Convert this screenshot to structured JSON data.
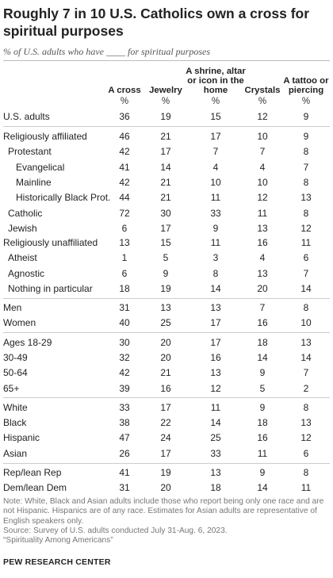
{
  "title": "Roughly 7 in 10 U.S. Catholics own a cross for spiritual purposes",
  "subtitle": "% of U.S. adults who have ____ for spiritual purposes",
  "columns": [
    "A cross",
    "Jewelry",
    "A shrine, altar or icon in the home",
    "Crystals",
    "A tattoo or piercing"
  ],
  "unit": "%",
  "rows": [
    {
      "label": "U.S. adults",
      "values": [
        "36",
        "19",
        "15",
        "12",
        "9"
      ]
    },
    {
      "label": "Religiously affiliated",
      "values": [
        "46",
        "21",
        "17",
        "10",
        "9"
      ]
    },
    {
      "label": "Protestant",
      "values": [
        "42",
        "17",
        "7",
        "7",
        "8"
      ]
    },
    {
      "label": "Evangelical",
      "values": [
        "41",
        "14",
        "4",
        "4",
        "7"
      ]
    },
    {
      "label": "Mainline",
      "values": [
        "42",
        "21",
        "10",
        "10",
        "8"
      ]
    },
    {
      "label": "Historically Black Prot.",
      "values": [
        "44",
        "21",
        "11",
        "12",
        "13"
      ]
    },
    {
      "label": "Catholic",
      "values": [
        "72",
        "30",
        "33",
        "11",
        "8"
      ]
    },
    {
      "label": "Jewish",
      "values": [
        "6",
        "17",
        "9",
        "13",
        "12"
      ]
    },
    {
      "label": "Religiously unaffiliated",
      "values": [
        "13",
        "15",
        "11",
        "16",
        "11"
      ]
    },
    {
      "label": "Atheist",
      "values": [
        "1",
        "5",
        "3",
        "4",
        "6"
      ]
    },
    {
      "label": "Agnostic",
      "values": [
        "6",
        "9",
        "8",
        "13",
        "7"
      ]
    },
    {
      "label": "Nothing in particular",
      "values": [
        "18",
        "19",
        "14",
        "20",
        "14"
      ]
    },
    {
      "label": "Men",
      "values": [
        "31",
        "13",
        "13",
        "7",
        "8"
      ]
    },
    {
      "label": "Women",
      "values": [
        "40",
        "25",
        "17",
        "16",
        "10"
      ]
    },
    {
      "label": "Ages 18-29",
      "values": [
        "30",
        "20",
        "17",
        "18",
        "13"
      ]
    },
    {
      "label": "30-49",
      "values": [
        "32",
        "20",
        "16",
        "14",
        "14"
      ]
    },
    {
      "label": "50-64",
      "values": [
        "42",
        "21",
        "13",
        "9",
        "7"
      ]
    },
    {
      "label": "65+",
      "values": [
        "39",
        "16",
        "12",
        "5",
        "2"
      ]
    },
    {
      "label": "White",
      "values": [
        "33",
        "17",
        "11",
        "9",
        "8"
      ]
    },
    {
      "label": "Black",
      "values": [
        "38",
        "22",
        "14",
        "18",
        "13"
      ]
    },
    {
      "label": "Hispanic",
      "values": [
        "47",
        "24",
        "25",
        "16",
        "12"
      ]
    },
    {
      "label": "Asian",
      "values": [
        "26",
        "17",
        "33",
        "11",
        "6"
      ]
    },
    {
      "label": "Rep/lean Rep",
      "values": [
        "41",
        "19",
        "13",
        "9",
        "8"
      ]
    },
    {
      "label": "Dem/lean Dem",
      "values": [
        "31",
        "20",
        "18",
        "14",
        "11"
      ]
    }
  ],
  "note": "Note: White, Black and Asian adults include those who report being only one race and are not Hispanic. Hispanics are of any race. Estimates for Asian adults are representative of English speakers only.",
  "source": "Source: Survey of U.S. adults conducted July 31-Aug. 6, 2023.",
  "report": "“Spirituality Among Americans”",
  "brand": "PEW RESEARCH CENTER"
}
